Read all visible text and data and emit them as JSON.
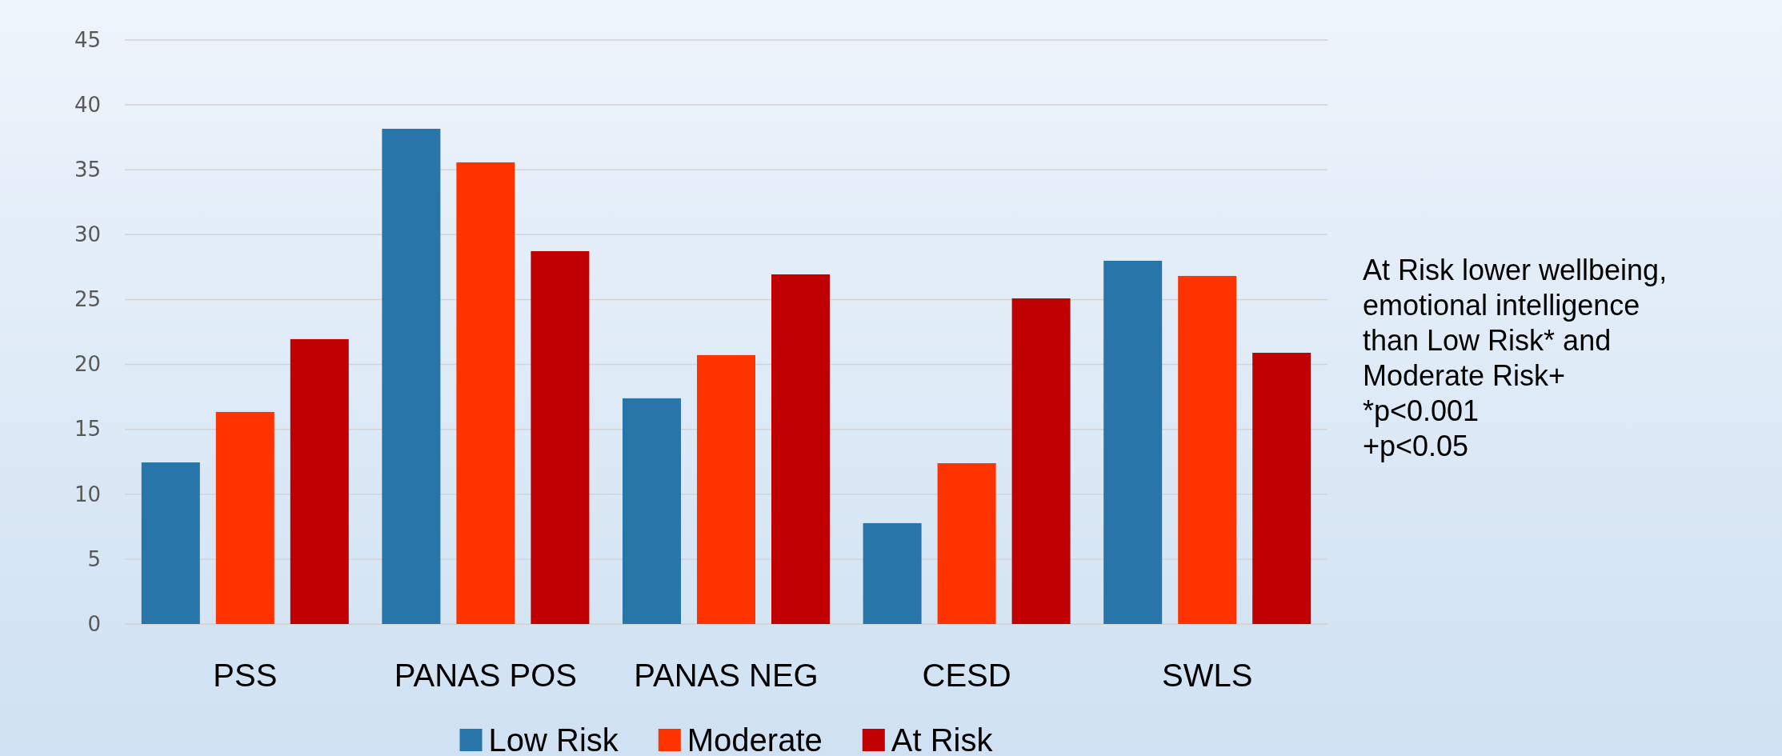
{
  "chart_data": {
    "type": "bar",
    "categories": [
      "PSS",
      "PANAS POS",
      "PANAS NEG",
      "CESD",
      "SWLS"
    ],
    "series": [
      {
        "name": "Low Risk",
        "color": "#2876a9",
        "values": [
          12.45,
          38.16,
          17.39,
          7.77,
          27.99
        ]
      },
      {
        "name": "Moderate",
        "color": "#ff3300",
        "values": [
          16.34,
          35.57,
          20.72,
          12.39,
          26.82
        ]
      },
      {
        "name": "At Risk",
        "color": "#c00000",
        "values": [
          21.95,
          28.73,
          26.94,
          25.09,
          20.9
        ]
      }
    ],
    "ylim": [
      0,
      45
    ],
    "yticks": [
      0,
      5,
      10,
      15,
      20,
      25,
      30,
      35,
      40,
      45
    ],
    "grid": "y",
    "legend": "bottom",
    "annotations": [
      "At Risk lower wellbeing,",
      "emotional intelligence",
      "than Low Risk* and",
      "Moderate Risk+",
      "*p<0.001",
      "+p<0.05"
    ]
  }
}
